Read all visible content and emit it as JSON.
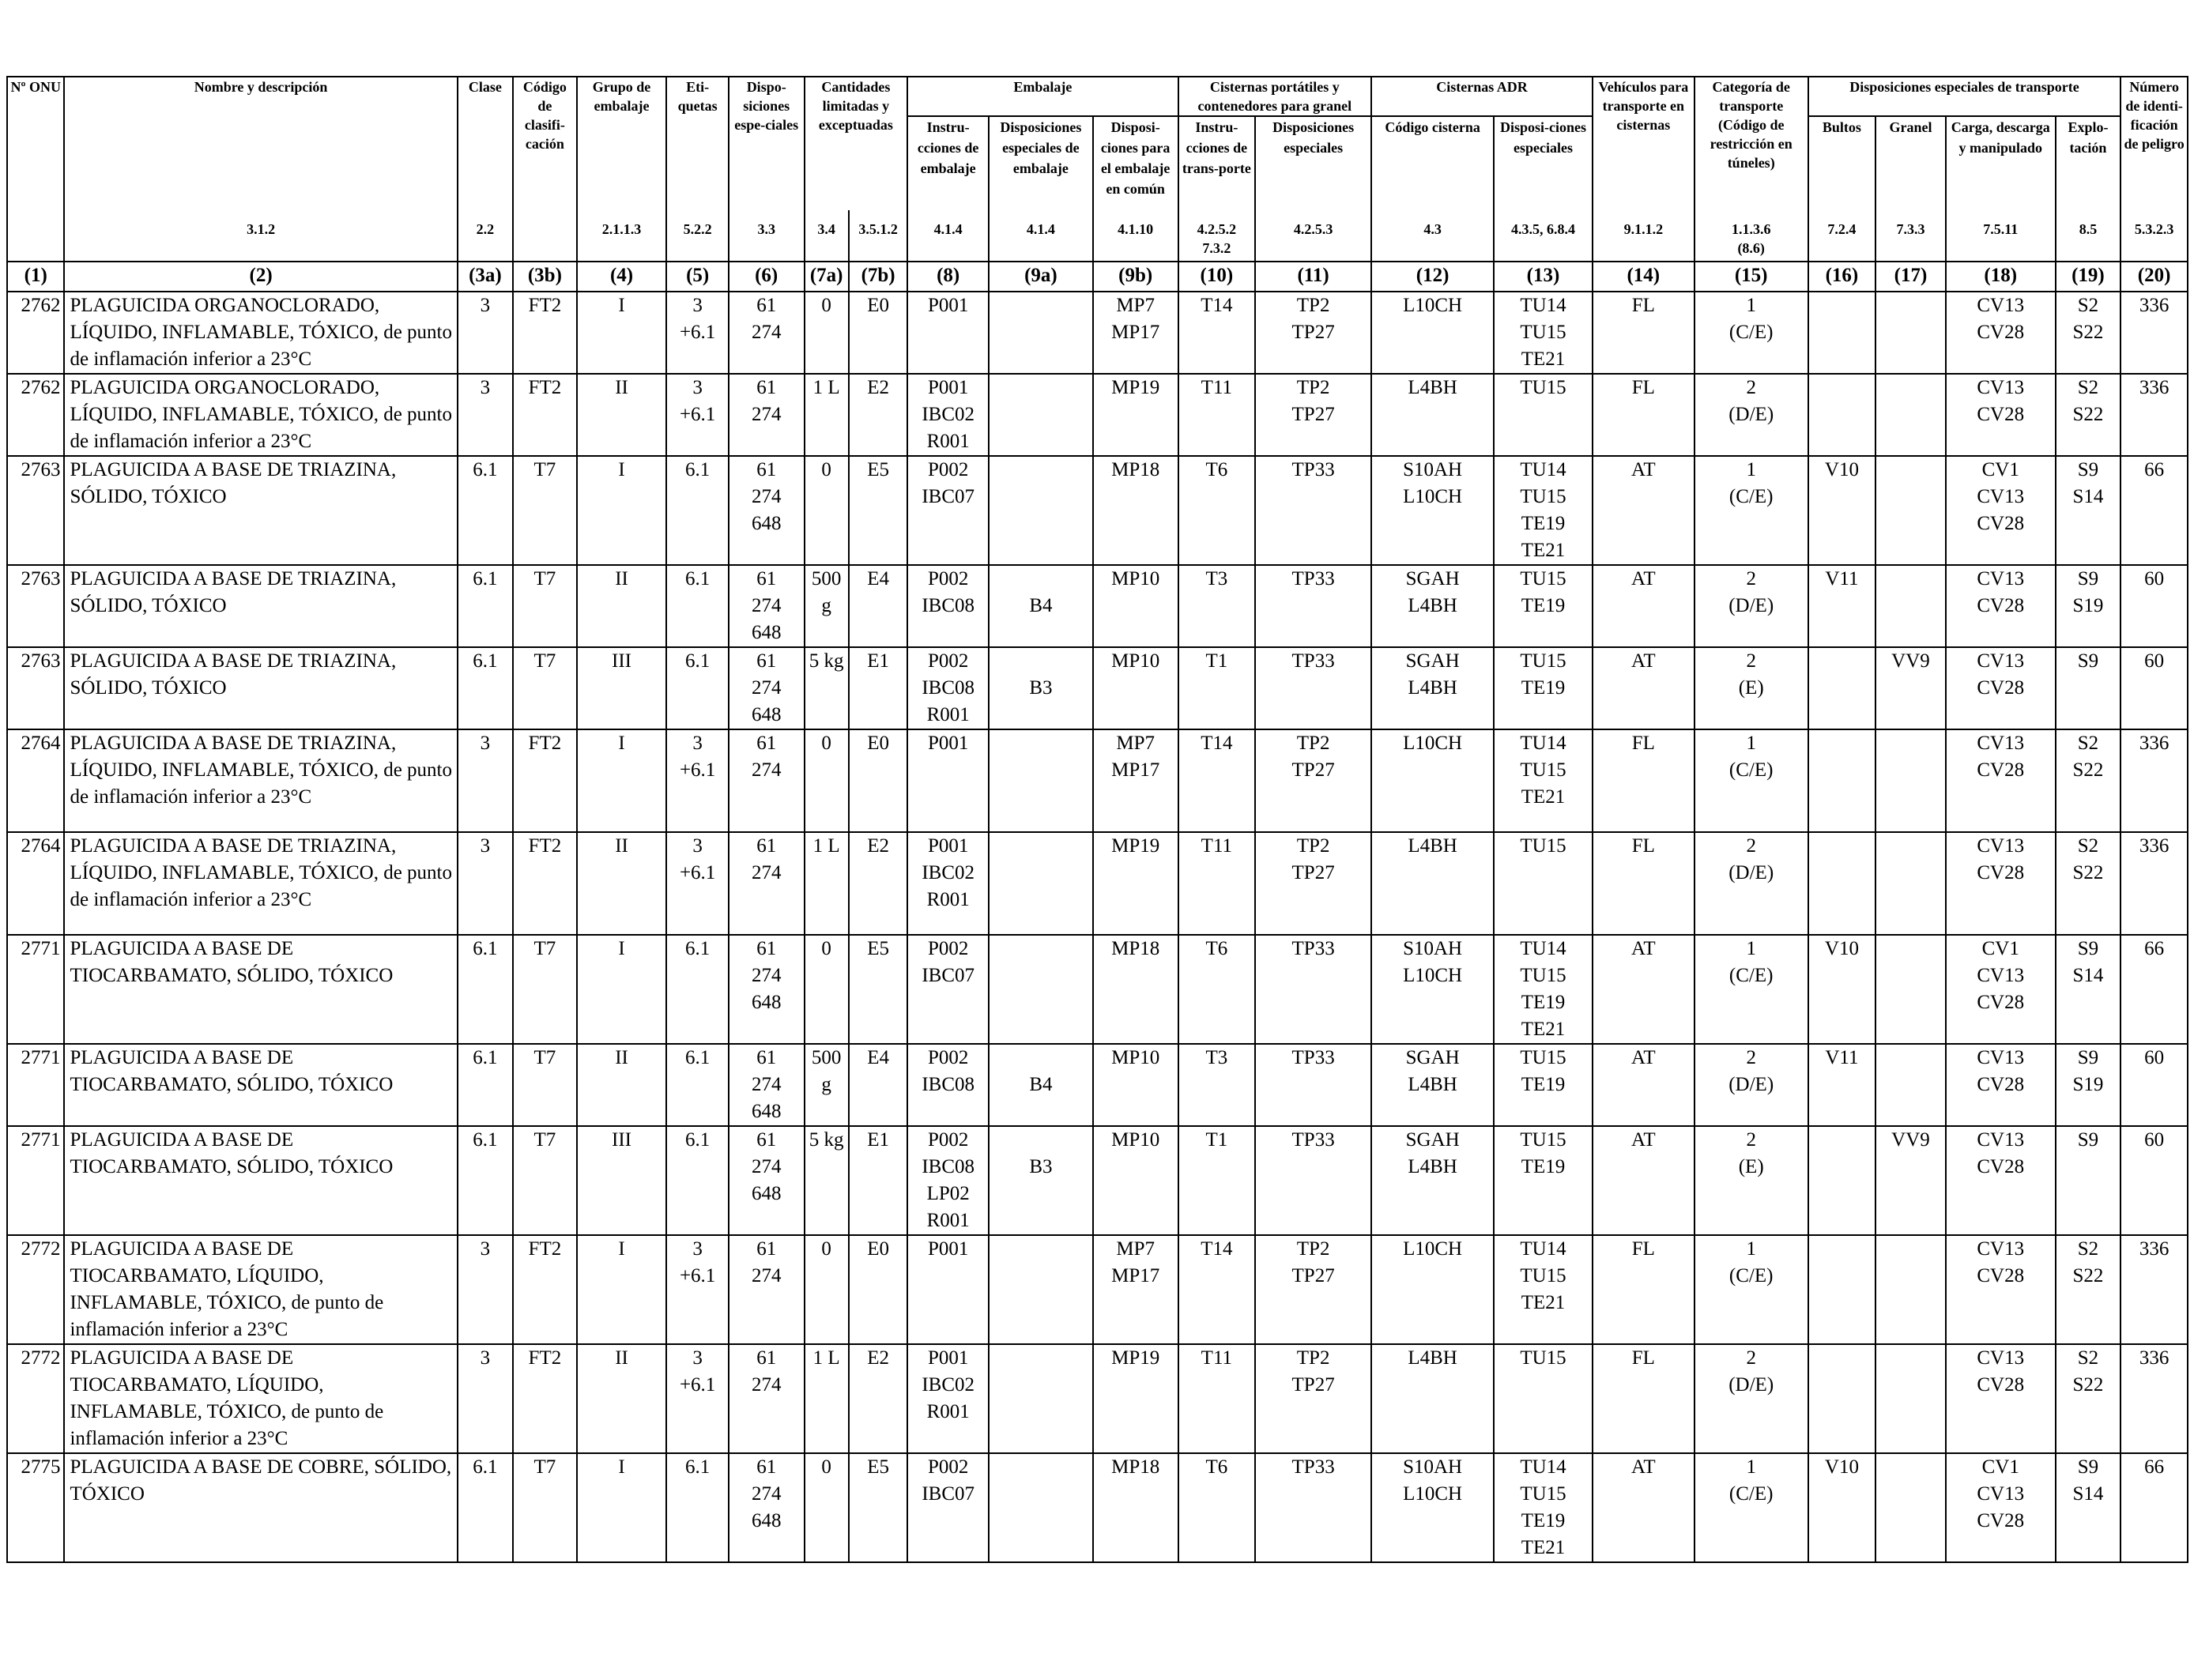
{
  "headers": {
    "un": "Nº ONU",
    "name": "Nombre y descripción",
    "clase": "Clase",
    "codigo": "Código de clasifi-cación",
    "grupo": "Grupo de embalaje",
    "etiquetas": "Eti-quetas",
    "disposiciones": "Dispo-siciones espe-ciales",
    "cantidades": "Cantidades limitadas y exceptuadas",
    "embalaje": "Embalaje",
    "embalaje_instr": "Instru-cciones de embalaje",
    "embalaje_disp": "Disposiciones especiales de embalaje",
    "embalaje_comun": "Disposi-ciones para el embalaje en común",
    "cisternas_port": "Cisternas portátiles y contenedores para granel",
    "cist_instr": "Instru-cciones de trans-porte",
    "cist_disp": "Disposiciones especiales",
    "cisternas_adr": "Cisternas ADR",
    "adr_codigo": "Código cisterna",
    "adr_disp": "Disposi-ciones especiales",
    "vehiculos": "Vehículos para transporte en cisternas",
    "categoria": "Categoría de transporte (Código de restricción en túneles)",
    "disp_transporte": "Disposiciones especiales de transporte",
    "bultos": "Bultos",
    "granel": "Granel",
    "carga": "Carga, descarga y manipulado",
    "explotacion": "Explo-tación",
    "numero_id": "Número de identi-ficación de peligro"
  },
  "refs": [
    "",
    "3.1.2",
    "2.2",
    "",
    "2.1.1.3",
    "5.2.2",
    "3.3",
    "3.4",
    "3.5.1.2",
    "4.1.4",
    "4.1.4",
    "4.1.10",
    "4.2.5.2 7.3.2",
    "4.2.5.3",
    "4.3",
    "4.3.5, 6.8.4",
    "9.1.1.2",
    "1.1.3.6 (8.6)",
    "7.2.4",
    "7.3.3",
    "7.5.11",
    "8.5",
    "5.3.2.3"
  ],
  "col_numbers": [
    "(1)",
    "(2)",
    "(3a)",
    "(3b)",
    "(4)",
    "(5)",
    "(6)",
    "(7a)",
    "(7b)",
    "(8)",
    "(9a)",
    "(9b)",
    "(10)",
    "(11)",
    "(12)",
    "(13)",
    "(14)",
    "(15)",
    "(16)",
    "(17)",
    "(18)",
    "(19)",
    "(20)"
  ],
  "rows": [
    {
      "un": "2762",
      "name": "PLAGUICIDA ORGANOCLORADO, LÍQUIDO, INFLAMABLE, TÓXICO, de punto de inflamación inferior a 23°C",
      "clase": "3",
      "codigo": "FT2",
      "grupo": "I",
      "etiquetas": "3\n+6.1",
      "disp": "61\n274",
      "c7a": "0",
      "c7b": "E0",
      "instr": "P001",
      "disp9a": "",
      "comun": "MP7\nMP17",
      "cist": "T14",
      "cistdisp": "TP2\nTP27",
      "adrcod": "L10CH",
      "adrdisp": "TU14\nTU15\nTE21",
      "veh": "FL",
      "cat": "1\n(C/E)",
      "bultos": "",
      "granel": "",
      "carga": "CV13\nCV28",
      "explo": "S2\nS22",
      "num": "336"
    },
    {
      "un": "2762",
      "name": "PLAGUICIDA ORGANOCLORADO, LÍQUIDO, INFLAMABLE, TÓXICO, de punto de inflamación inferior a 23°C",
      "clase": "3",
      "codigo": "FT2",
      "grupo": "II",
      "etiquetas": "3\n+6.1",
      "disp": "61\n274",
      "c7a": "1 L",
      "c7b": "E2",
      "instr": "P001\nIBC02\nR001",
      "disp9a": "",
      "comun": "MP19",
      "cist": "T11",
      "cistdisp": "TP2\nTP27",
      "adrcod": "L4BH",
      "adrdisp": "TU15",
      "veh": "FL",
      "cat": "2\n(D/E)",
      "bultos": "",
      "granel": "",
      "carga": "CV13\nCV28",
      "explo": "S2\nS22",
      "num": "336"
    },
    {
      "un": "2763",
      "name": "PLAGUICIDA A BASE DE TRIAZINA, SÓLIDO, TÓXICO",
      "clase": "6.1",
      "codigo": "T7",
      "grupo": "I",
      "etiquetas": "6.1",
      "disp": "61\n274\n648",
      "c7a": "0",
      "c7b": "E5",
      "instr": "P002\nIBC07",
      "disp9a": "",
      "comun": "MP18",
      "cist": "T6",
      "cistdisp": "TP33",
      "adrcod": "S10AH\nL10CH",
      "adrdisp": "TU14\nTU15\nTE19\nTE21",
      "veh": "AT",
      "cat": "1\n(C/E)",
      "bultos": "V10",
      "granel": "",
      "carga": "CV1\nCV13\nCV28",
      "explo": "S9\nS14",
      "num": "66"
    },
    {
      "un": "2763",
      "name": "PLAGUICIDA A BASE DE TRIAZINA, SÓLIDO, TÓXICO",
      "clase": "6.1",
      "codigo": "T7",
      "grupo": "II",
      "etiquetas": "6.1",
      "disp": "61\n274\n648",
      "c7a": "500\ng",
      "c7b": "E4",
      "instr": "P002\nIBC08",
      "disp9a": "\nB4",
      "comun": "MP10",
      "cist": "T3",
      "cistdisp": "TP33",
      "adrcod": "SGAH\nL4BH",
      "adrdisp": "TU15\nTE19",
      "veh": "AT",
      "cat": "2\n(D/E)",
      "bultos": "V11",
      "granel": "",
      "carga": "CV13\nCV28",
      "explo": "S9\nS19",
      "num": "60"
    },
    {
      "un": "2763",
      "name": "PLAGUICIDA A BASE DE TRIAZINA, SÓLIDO, TÓXICO",
      "clase": "6.1",
      "codigo": "T7",
      "grupo": "III",
      "etiquetas": "6.1",
      "disp": "61\n274\n648",
      "c7a": "5 kg",
      "c7b": "E1",
      "instr": "P002\nIBC08\nR001",
      "disp9a": "\nB3",
      "comun": "MP10",
      "cist": "T1",
      "cistdisp": "TP33",
      "adrcod": "SGAH\nL4BH",
      "adrdisp": "TU15\nTE19",
      "veh": "AT",
      "cat": "2\n(E)",
      "bultos": "",
      "granel": "VV9",
      "carga": "CV13\nCV28",
      "explo": "S9",
      "num": "60"
    },
    {
      "un": "2764",
      "name": "PLAGUICIDA A BASE DE TRIAZINA, LÍQUIDO, INFLAMABLE, TÓXICO, de punto de inflamación inferior a 23°C",
      "clase": "3",
      "codigo": "FT2",
      "grupo": "I",
      "etiquetas": "3\n+6.1",
      "disp": "61\n274",
      "c7a": "0",
      "c7b": "E0",
      "instr": "P001",
      "disp9a": "",
      "comun": "MP7\nMP17",
      "cist": "T14",
      "cistdisp": "TP2\nTP27",
      "adrcod": "L10CH",
      "adrdisp": "TU14\nTU15\nTE21",
      "veh": "FL",
      "cat": "1\n(C/E)",
      "bultos": "",
      "granel": "",
      "carga": "CV13\nCV28",
      "explo": "S2\nS22",
      "num": "336"
    },
    {
      "un": "2764",
      "name": "PLAGUICIDA A BASE DE TRIAZINA, LÍQUIDO, INFLAMABLE, TÓXICO, de punto de inflamación inferior a 23°C",
      "clase": "3",
      "codigo": "FT2",
      "grupo": "II",
      "etiquetas": "3\n+6.1",
      "disp": "61\n274",
      "c7a": "1 L",
      "c7b": "E2",
      "instr": "P001\nIBC02\nR001",
      "disp9a": "",
      "comun": "MP19",
      "cist": "T11",
      "cistdisp": "TP2\nTP27",
      "adrcod": "L4BH",
      "adrdisp": "TU15",
      "veh": "FL",
      "cat": "2\n(D/E)",
      "bultos": "",
      "granel": "",
      "carga": "CV13\nCV28",
      "explo": "S2\nS22",
      "num": "336"
    },
    {
      "un": "2771",
      "name": "PLAGUICIDA A BASE DE TIOCARBAMATO, SÓLIDO, TÓXICO",
      "clase": "6.1",
      "codigo": "T7",
      "grupo": "I",
      "etiquetas": "6.1",
      "disp": "61\n274\n648",
      "c7a": "0",
      "c7b": "E5",
      "instr": "P002\nIBC07",
      "disp9a": "",
      "comun": "MP18",
      "cist": "T6",
      "cistdisp": "TP33",
      "adrcod": "S10AH\nL10CH",
      "adrdisp": "TU14\nTU15\nTE19\nTE21",
      "veh": "AT",
      "cat": "1\n(C/E)",
      "bultos": "V10",
      "granel": "",
      "carga": "CV1\nCV13\nCV28",
      "explo": "S9\nS14",
      "num": "66"
    },
    {
      "un": "2771",
      "name": "PLAGUICIDA A BASE DE TIOCARBAMATO, SÓLIDO, TÓXICO",
      "clase": "6.1",
      "codigo": "T7",
      "grupo": "II",
      "etiquetas": "6.1",
      "disp": "61\n274\n648",
      "c7a": "500\ng",
      "c7b": "E4",
      "instr": "P002\nIBC08",
      "disp9a": "\nB4",
      "comun": "MP10",
      "cist": "T3",
      "cistdisp": "TP33",
      "adrcod": "SGAH\nL4BH",
      "adrdisp": "TU15\nTE19",
      "veh": "AT",
      "cat": "2\n(D/E)",
      "bultos": "V11",
      "granel": "",
      "carga": "CV13\nCV28",
      "explo": "S9\nS19",
      "num": "60"
    },
    {
      "un": "2771",
      "name": "PLAGUICIDA A BASE DE TIOCARBAMATO, SÓLIDO, TÓXICO",
      "clase": "6.1",
      "codigo": "T7",
      "grupo": "III",
      "etiquetas": "6.1",
      "disp": "61\n274\n648",
      "c7a": "5 kg",
      "c7b": "E1",
      "instr": "P002\nIBC08\nLP02\nR001",
      "disp9a": "\nB3",
      "comun": "MP10",
      "cist": "T1",
      "cistdisp": "TP33",
      "adrcod": "SGAH\nL4BH",
      "adrdisp": "TU15\nTE19",
      "veh": "AT",
      "cat": "2\n(E)",
      "bultos": "",
      "granel": "VV9",
      "carga": "CV13\nCV28",
      "explo": "S9",
      "num": "60"
    },
    {
      "un": "2772",
      "name": "PLAGUICIDA A BASE DE TIOCARBAMATO, LÍQUIDO, INFLAMABLE, TÓXICO, de punto de inflamación inferior a 23°C",
      "clase": "3",
      "codigo": "FT2",
      "grupo": "I",
      "etiquetas": "3\n+6.1",
      "disp": "61\n274",
      "c7a": "0",
      "c7b": "E0",
      "instr": "P001",
      "disp9a": "",
      "comun": "MP7\nMP17",
      "cist": "T14",
      "cistdisp": "TP2\nTP27",
      "adrcod": "L10CH",
      "adrdisp": "TU14\nTU15\nTE21",
      "veh": "FL",
      "cat": "1\n(C/E)",
      "bultos": "",
      "granel": "",
      "carga": "CV13\nCV28",
      "explo": "S2\nS22",
      "num": "336"
    },
    {
      "un": "2772",
      "name": "PLAGUICIDA A BASE DE TIOCARBAMATO, LÍQUIDO, INFLAMABLE, TÓXICO, de punto de inflamación inferior a 23°C",
      "clase": "3",
      "codigo": "FT2",
      "grupo": "II",
      "etiquetas": "3\n+6.1",
      "disp": "61\n274",
      "c7a": "1 L",
      "c7b": "E2",
      "instr": "P001\nIBC02\nR001",
      "disp9a": "",
      "comun": "MP19",
      "cist": "T11",
      "cistdisp": "TP2\nTP27",
      "adrcod": "L4BH",
      "adrdisp": "TU15",
      "veh": "FL",
      "cat": "2\n(D/E)",
      "bultos": "",
      "granel": "",
      "carga": "CV13\nCV28",
      "explo": "S2\nS22",
      "num": "336"
    },
    {
      "un": "2775",
      "name": "PLAGUICIDA A BASE DE COBRE, SÓLIDO, TÓXICO",
      "clase": "6.1",
      "codigo": "T7",
      "grupo": "I",
      "etiquetas": "6.1",
      "disp": "61\n274\n648",
      "c7a": "0",
      "c7b": "E5",
      "instr": "P002\nIBC07",
      "disp9a": "",
      "comun": "MP18",
      "cist": "T6",
      "cistdisp": "TP33",
      "adrcod": "S10AH\nL10CH",
      "adrdisp": "TU14\nTU15\nTE19\nTE21",
      "veh": "AT",
      "cat": "1\n(C/E)",
      "bultos": "V10",
      "granel": "",
      "carga": "CV1\nCV13\nCV28",
      "explo": "S9\nS14",
      "num": "66"
    }
  ]
}
